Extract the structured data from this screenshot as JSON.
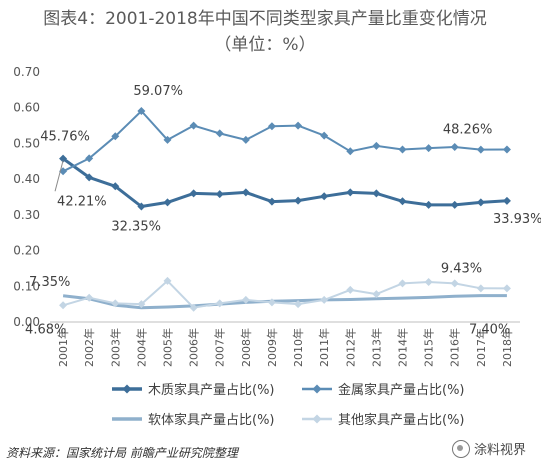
{
  "title": "图表4：2001-2018年中国不同类型家具产量比重变化情况（单位：%）",
  "source": "资料来源：国家统计局 前瞻产业研究院整理",
  "watermark": "涂料视界",
  "chart_data": {
    "type": "line",
    "title": "图表4：2001-2018年中国不同类型家具产量比重变化情况（单位：%）",
    "xlabel": "",
    "ylabel": "",
    "ylim": [
      0,
      0.7
    ],
    "yticks": [
      "0.00",
      "0.10",
      "0.20",
      "0.30",
      "0.40",
      "0.50",
      "0.60",
      "0.70"
    ],
    "grid": false,
    "legend_position": "bottom",
    "categories": [
      "2001年",
      "2002年",
      "2003年",
      "2004年",
      "2005年",
      "2006年",
      "2007年",
      "2008年",
      "2009年",
      "2010年",
      "2011年",
      "2012年",
      "2013年",
      "2014年",
      "2015年",
      "2016年",
      "2017年",
      "2018年"
    ],
    "series": [
      {
        "name": "木质家具产量占比(%)",
        "color": "#3d6e99",
        "marker": "diamond",
        "width": 3,
        "values": [
          0.4576,
          0.405,
          0.38,
          0.3235,
          0.335,
          0.36,
          0.358,
          0.363,
          0.337,
          0.34,
          0.352,
          0.363,
          0.36,
          0.338,
          0.328,
          0.328,
          0.335,
          0.3393
        ]
      },
      {
        "name": "金属家具产量占比(%)",
        "color": "#5b8cb5",
        "marker": "diamond",
        "width": 2,
        "values": [
          0.4221,
          0.458,
          0.52,
          0.5907,
          0.51,
          0.55,
          0.528,
          0.51,
          0.548,
          0.55,
          0.522,
          0.478,
          0.493,
          0.483,
          0.487,
          0.49,
          0.4826,
          0.483
        ]
      },
      {
        "name": "软体家具产量占比(%)",
        "color": "#8fb0cc",
        "marker": "none",
        "width": 3,
        "values": [
          0.0735,
          0.065,
          0.047,
          0.04,
          0.042,
          0.045,
          0.05,
          0.055,
          0.058,
          0.06,
          0.062,
          0.063,
          0.065,
          0.067,
          0.069,
          0.072,
          0.074,
          0.074
        ]
      },
      {
        "name": "其他家具产量占比(%)",
        "color": "#c3d5e4",
        "marker": "diamond",
        "width": 2,
        "values": [
          0.0468,
          0.068,
          0.052,
          0.05,
          0.115,
          0.04,
          0.052,
          0.062,
          0.055,
          0.05,
          0.062,
          0.09,
          0.078,
          0.108,
          0.112,
          0.108,
          0.0943,
          0.094
        ]
      }
    ],
    "annotations": [
      {
        "text": "45.76%",
        "series": 0,
        "index": 0
      },
      {
        "text": "42.21%",
        "series": 1,
        "index": 0
      },
      {
        "text": "59.07%",
        "series": 1,
        "index": 3
      },
      {
        "text": "32.35%",
        "series": 0,
        "index": 3
      },
      {
        "text": "48.26%",
        "series": 1,
        "index": 16
      },
      {
        "text": "33.93%",
        "series": 0,
        "index": 17
      },
      {
        "text": "7.35%",
        "series": 2,
        "index": 0
      },
      {
        "text": "4.68%",
        "series": 3,
        "index": 0
      },
      {
        "text": "9.43%",
        "series": 3,
        "index": 16
      },
      {
        "text": "7.40%",
        "series": 2,
        "index": 17
      }
    ]
  }
}
